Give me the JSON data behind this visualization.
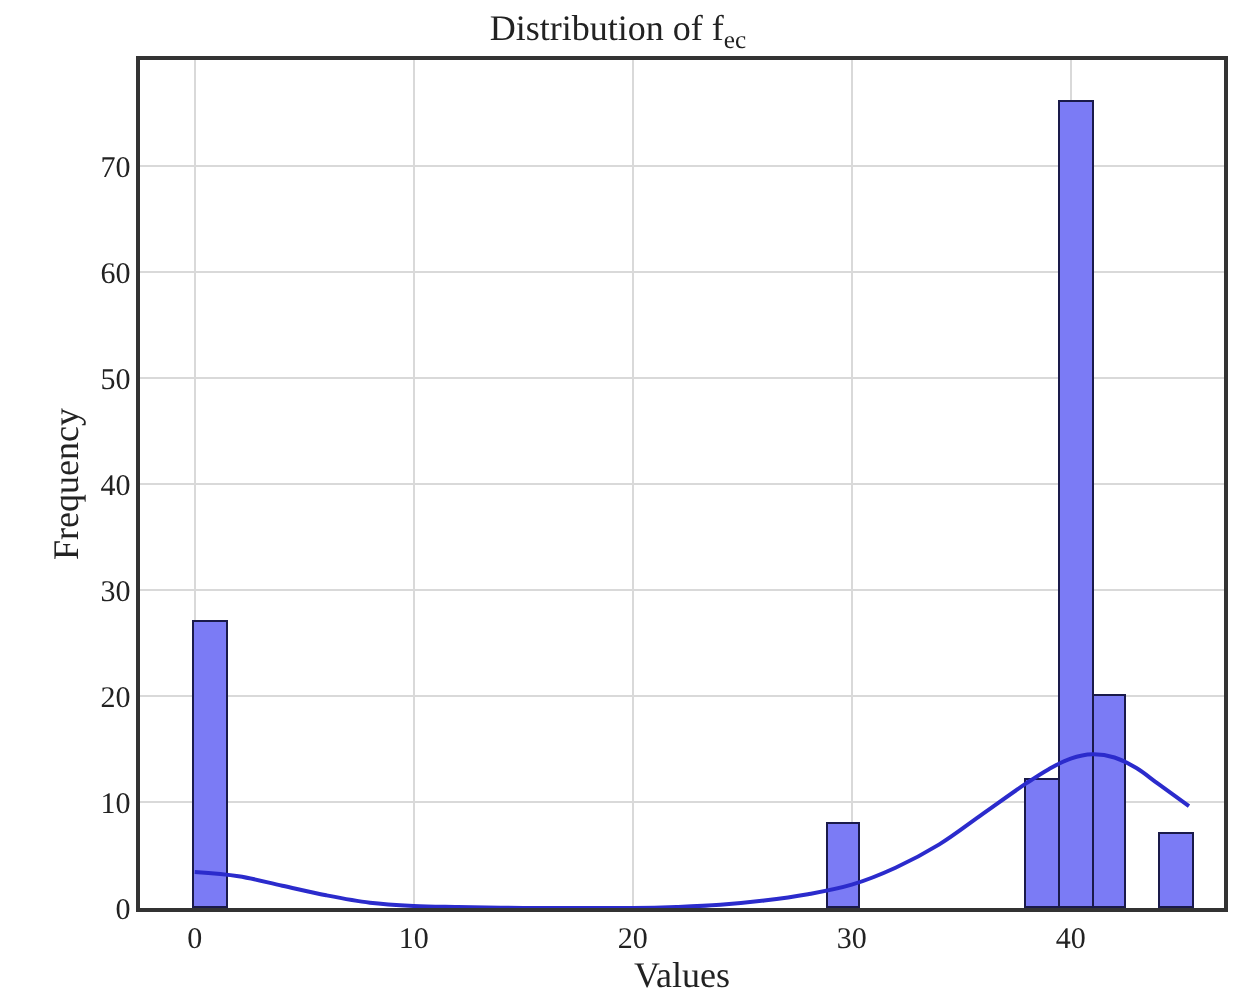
{
  "chart_data": {
    "type": "histogram",
    "title": "Distribution of f$_{ec}$",
    "xlabel": "Values",
    "ylabel": "Frequency",
    "bins": [
      0,
      1.52,
      3.04,
      4.56,
      6.08,
      7.6,
      9.12,
      10.64,
      12.16,
      13.68,
      15.2,
      16.72,
      18.24,
      19.76,
      21.28,
      22.8,
      24.32,
      25.84,
      27.36,
      28.88,
      30.4,
      31.92,
      33.44,
      34.96,
      36.48,
      38.0,
      39.52,
      41.04,
      42.56,
      44.08,
      45.6
    ],
    "values": [
      27,
      0,
      0,
      0,
      0,
      0,
      0,
      0,
      0,
      0,
      0,
      0,
      0,
      0,
      0,
      0,
      0,
      0,
      0,
      8,
      0,
      0,
      0,
      0,
      0,
      12,
      76,
      20,
      0,
      7
    ],
    "color": "#7b7bf5",
    "series": [
      {
        "type": "line",
        "color": "#2b2bcc",
        "x": [
          0,
          2,
          4,
          6,
          8,
          10,
          12,
          15,
          18,
          20,
          22,
          24,
          26,
          28,
          30,
          32,
          34,
          36,
          38,
          39,
          40,
          41,
          42,
          43,
          44,
          45.4
        ],
        "values": [
          3.4,
          3.0,
          2.1,
          1.2,
          0.5,
          0.2,
          0.1,
          0,
          0,
          0,
          0.1,
          0.3,
          0.7,
          1.3,
          2.2,
          3.8,
          6.0,
          8.9,
          11.8,
          13.1,
          14.1,
          14.5,
          14.2,
          13.2,
          11.7,
          9.6
        ]
      }
    ],
    "xlim": [
      -2.5,
      47
    ],
    "xticks": [
      0,
      10,
      20,
      30,
      40
    ],
    "ylim": [
      0,
      80
    ],
    "yticks": [
      0,
      10,
      20,
      30,
      40,
      50,
      60,
      70
    ],
    "grid": true
  }
}
